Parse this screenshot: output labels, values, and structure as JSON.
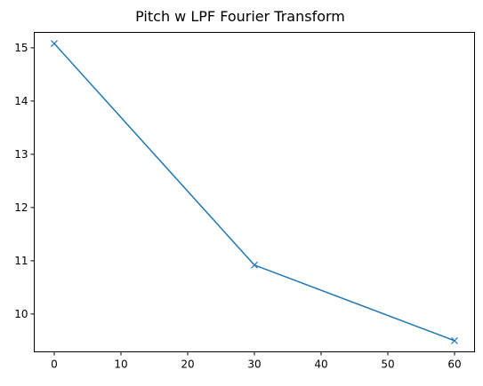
{
  "chart_data": {
    "type": "line",
    "title": "Pitch w LPF Fourier Transform",
    "xlabel": "",
    "ylabel": "",
    "x": [
      0,
      30,
      60
    ],
    "series": [
      {
        "values": [
          15.08,
          10.92,
          9.5
        ],
        "color": "#1f77b4",
        "marker": "x"
      }
    ],
    "xlim": [
      -3,
      63
    ],
    "ylim": [
      9.29,
      15.29
    ],
    "xticks": [
      0,
      10,
      20,
      30,
      40,
      50,
      60
    ],
    "yticks": [
      10,
      11,
      12,
      13,
      14,
      15
    ],
    "grid": false
  }
}
